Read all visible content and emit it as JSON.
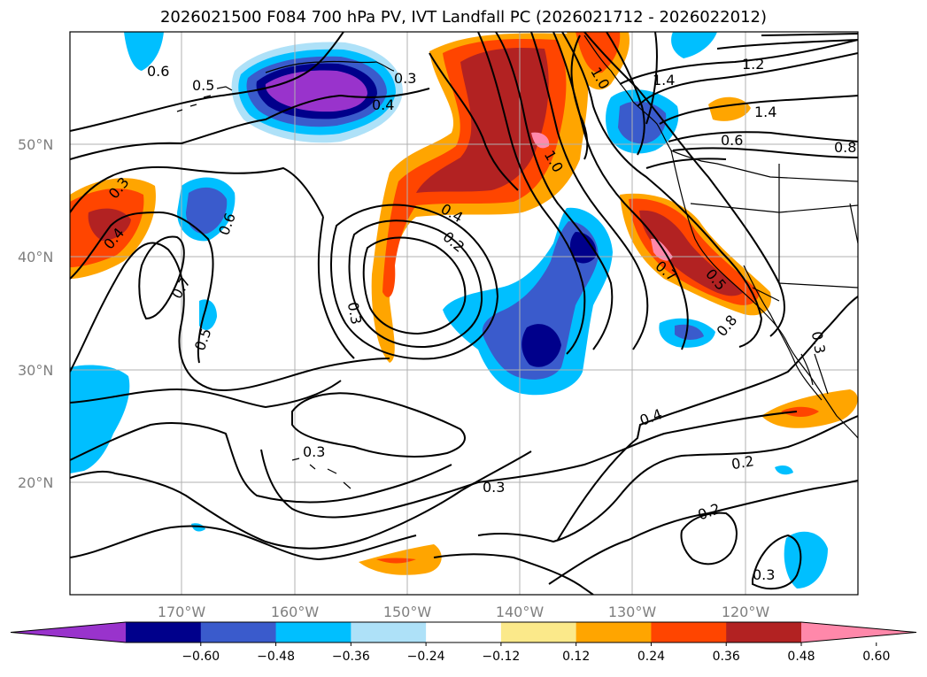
{
  "title": "2026021500 F084 700 hPa PV, IVT Landfall PC (2026021712 - 2026022012)",
  "map": {
    "lat_labels": [
      "50°N",
      "40°N",
      "30°N",
      "20°N"
    ],
    "lon_labels": [
      "170°W",
      "160°W",
      "150°W",
      "140°W",
      "130°W",
      "120°W"
    ],
    "contour_labels": [
      "0.6",
      "0.5",
      "0.3",
      "0.4",
      "1.0",
      "1.2",
      "1.4",
      "0.6",
      "0.8",
      "1.4",
      "0.3",
      "0.4",
      "0.6",
      "0.7",
      "0.5",
      "0.4",
      "0.2",
      "1.0",
      "0.3",
      "0.7",
      "0.5",
      "0.8",
      "0.3",
      "0.4",
      "0.2",
      "0.3",
      "0.3",
      "0.2",
      "0.3"
    ]
  },
  "colorbar": {
    "colors": [
      "#9933cc",
      "#00008b",
      "#3a5bcc",
      "#00bfff",
      "#aee1f8",
      "#ffffff",
      "#fbe98a",
      "#ffa500",
      "#ff4500",
      "#b22222",
      "#ff88aa"
    ],
    "ticks": [
      "−0.60",
      "−0.48",
      "−0.36",
      "−0.24",
      "−0.12",
      "0.12",
      "0.24",
      "0.36",
      "0.48",
      "0.60"
    ]
  }
}
